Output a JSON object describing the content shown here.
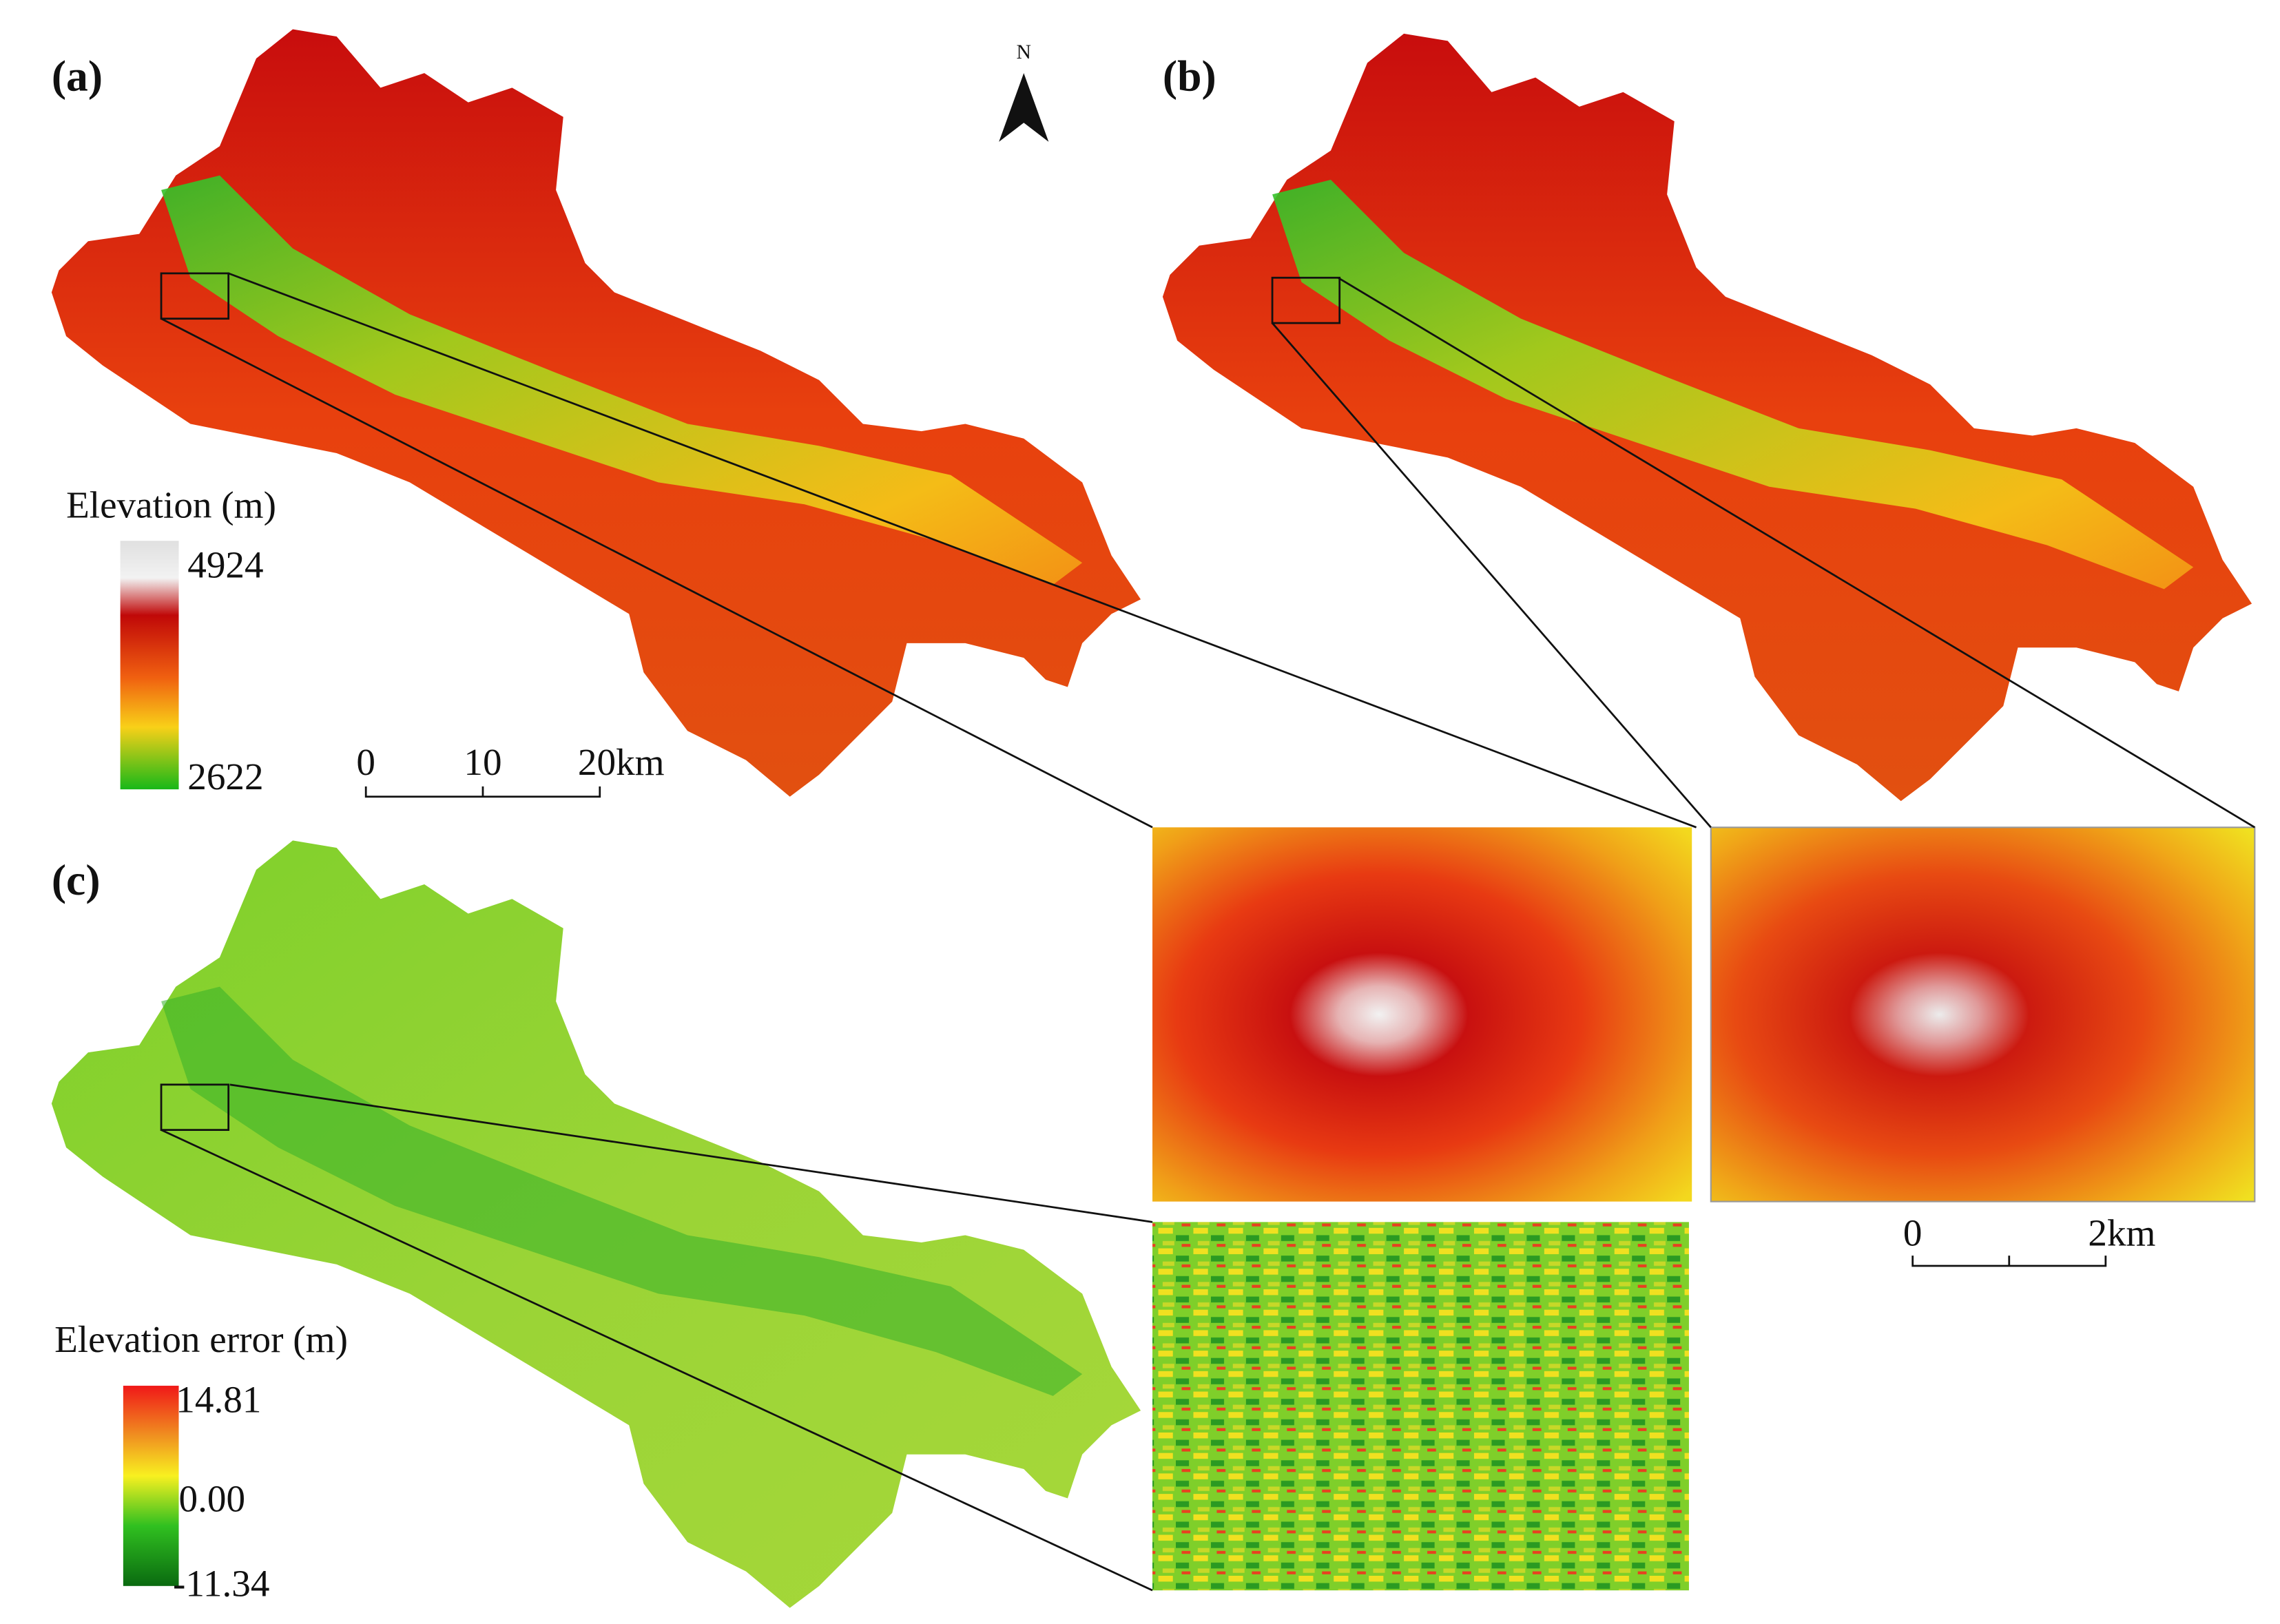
{
  "north": "N",
  "panels": {
    "a": {
      "label": "(a)"
    },
    "b": {
      "label": "(b)"
    },
    "c": {
      "label": "(c)"
    }
  },
  "elevation_legend": {
    "title": "Elevation (m)",
    "max": "4924",
    "min": "2622"
  },
  "error_legend": {
    "title": "Elevation error (m)",
    "max": "14.81",
    "mid": "0.00",
    "min": "-11.34"
  },
  "scale_bar": {
    "labels": [
      "0",
      "10",
      "20km"
    ]
  },
  "inset_scale_bar": {
    "labels": [
      "0",
      "2km"
    ]
  }
}
